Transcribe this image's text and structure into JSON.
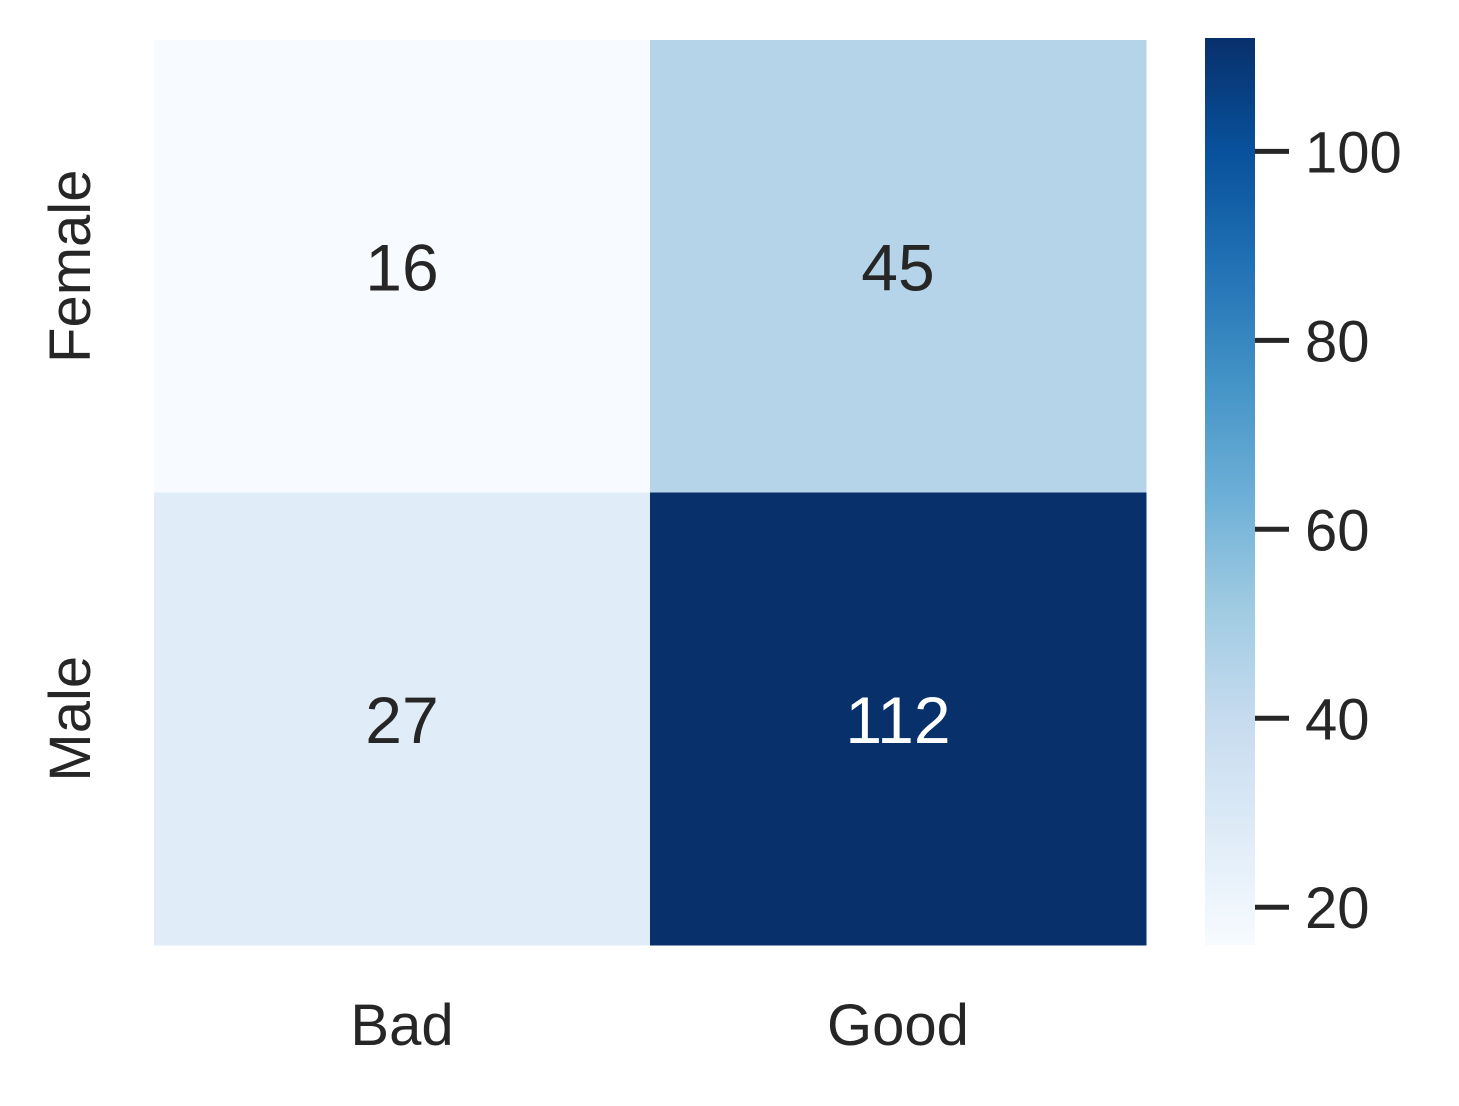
{
  "chart_data": {
    "type": "heatmap",
    "title": "",
    "xlabel": "",
    "ylabel": "",
    "x_categories": [
      "Bad",
      "Good"
    ],
    "y_categories": [
      "Female",
      "Male"
    ],
    "values": [
      [
        16,
        45
      ],
      [
        27,
        112
      ]
    ],
    "colormap": "Blues",
    "colorbar": {
      "range": [
        16,
        112
      ],
      "ticks": [
        20,
        40,
        60,
        80,
        100
      ],
      "tick_labels": [
        "20",
        "40",
        "60",
        "80",
        "100"
      ]
    },
    "annotations": true,
    "grid": false,
    "legend": "colorbar-right"
  },
  "colors": {
    "text": "#262626",
    "annotation_dark": "#262626",
    "annotation_light": "#ffffff",
    "colormap_stops": [
      "#f7fbff",
      "#deebf7",
      "#c6dbef",
      "#9ecae1",
      "#6baed6",
      "#4292c6",
      "#2171b5",
      "#08519c",
      "#08306b"
    ]
  }
}
